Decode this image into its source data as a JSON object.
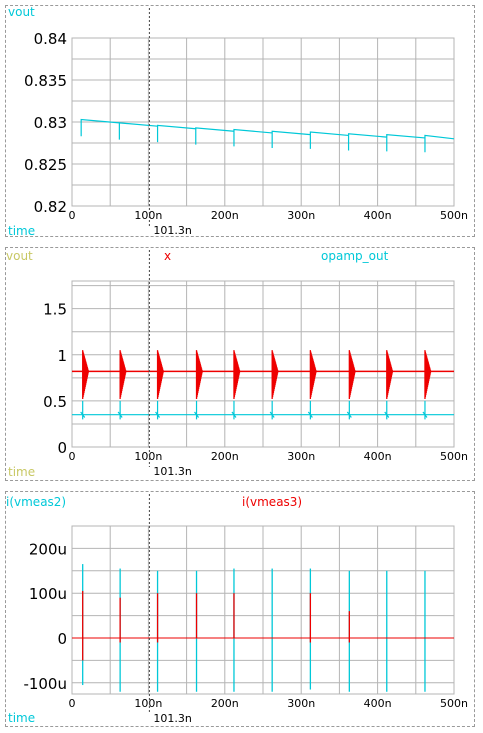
{
  "colors": {
    "cyan": "#00c8d8",
    "red": "#ee0000",
    "olive": "#c8c864",
    "grid": "#b4b4b4",
    "text": "#000000"
  },
  "cursor": {
    "label": "101.3n",
    "time_ns": 101.3
  },
  "chart_data": [
    {
      "type": "line",
      "legend": [
        {
          "label": "vout",
          "color": "cyan"
        }
      ],
      "xlabel": "time",
      "xlim": [
        0,
        500
      ],
      "x_ticks": [
        0,
        100,
        200,
        300,
        400,
        500
      ],
      "x_tick_labels": [
        "0",
        "100n",
        "200n",
        "300n",
        "400n",
        "500n"
      ],
      "ylim": [
        0.82,
        0.84
      ],
      "y_ticks": [
        0.82,
        0.825,
        0.83,
        0.835,
        0.84
      ],
      "y_tick_labels": [
        "0.82",
        "0.825",
        "0.83",
        "0.835",
        "0.84"
      ],
      "grid": true,
      "series": [
        {
          "color": "cyan",
          "style": "sawtooth",
          "pulse_period_ns": 50,
          "pulse_offset_ns": 12,
          "x": [
            12,
            62,
            112,
            162,
            212,
            262,
            312,
            362,
            412,
            462,
            500
          ],
          "y": [
            0.8301,
            0.8297,
            0.8294,
            0.8291,
            0.8289,
            0.8287,
            0.8286,
            0.8284,
            0.8283,
            0.8282,
            0.8282
          ]
        }
      ]
    },
    {
      "type": "line",
      "legend": [
        {
          "label": "vout",
          "color": "olive"
        },
        {
          "label": "x",
          "color": "red"
        },
        {
          "label": "opamp_out",
          "color": "cyan"
        }
      ],
      "xlabel": "time",
      "xlim": [
        0,
        500
      ],
      "x_ticks": [
        0,
        100,
        200,
        300,
        400,
        500
      ],
      "x_tick_labels": [
        "0",
        "100n",
        "200n",
        "300n",
        "400n",
        "500n"
      ],
      "ylim": [
        0,
        1.8
      ],
      "y_ticks": [
        0,
        0.5,
        1,
        1.5
      ],
      "y_tick_labels": [
        "0",
        "0.5",
        "1",
        "1.5"
      ],
      "grid": true,
      "series": [
        {
          "color": "red",
          "style": "baseline_bursts",
          "baseline": 0.82,
          "burst_max": 1.05,
          "burst_min": 0.52,
          "bursts_ns": [
            14,
            63,
            112,
            163,
            212,
            262,
            312,
            363,
            412,
            462
          ]
        },
        {
          "color": "cyan",
          "style": "baseline_spikes",
          "baseline": 0.35,
          "spike_max": 0.5,
          "spike_min": 0.3,
          "spikes_ns": [
            14,
            63,
            112,
            163,
            212,
            262,
            312,
            363,
            412,
            462
          ]
        }
      ]
    },
    {
      "type": "line",
      "legend": [
        {
          "label": "i(vmeas2)",
          "color": "cyan"
        },
        {
          "label": "i(vmeas3)",
          "color": "red"
        }
      ],
      "xlabel": "time",
      "xlim": [
        0,
        500
      ],
      "x_ticks": [
        0,
        100,
        200,
        300,
        400,
        500
      ],
      "x_tick_labels": [
        "0",
        "100n",
        "200n",
        "300n",
        "400n",
        "500n"
      ],
      "ylim": [
        -0.000125,
        0.00025
      ],
      "y_ticks": [
        -0.0001,
        0,
        0.0001,
        0.0002
      ],
      "y_tick_labels": [
        "-100u",
        "0",
        "100u",
        "200u"
      ],
      "grid": true,
      "series": [
        {
          "color": "cyan",
          "style": "spikes",
          "baseline": 0,
          "spikes": [
            [
              14,
              0.000165,
              -0.000105
            ],
            [
              63,
              0.000155,
              -0.00012
            ],
            [
              112,
              0.00015,
              -0.00012
            ],
            [
              163,
              0.00015,
              -0.00012
            ],
            [
              212,
              0.000155,
              -0.00012
            ],
            [
              262,
              0.000155,
              -0.00012
            ],
            [
              312,
              0.000155,
              -0.000115
            ],
            [
              363,
              0.00015,
              -0.00012
            ],
            [
              412,
              0.00015,
              -0.00012
            ],
            [
              462,
              0.00015,
              -0.00012
            ]
          ]
        },
        {
          "color": "red",
          "style": "spikes",
          "baseline": 0,
          "spikes": [
            [
              14,
              0.000105,
              -5e-05
            ],
            [
              63,
              9e-05,
              -1e-05
            ],
            [
              112,
              0.0001,
              -1e-05
            ],
            [
              163,
              0.0001,
              0
            ],
            [
              212,
              0.0001,
              0
            ],
            [
              312,
              0.0001,
              -1e-05
            ],
            [
              363,
              6e-05,
              -1e-05
            ]
          ]
        }
      ]
    }
  ]
}
